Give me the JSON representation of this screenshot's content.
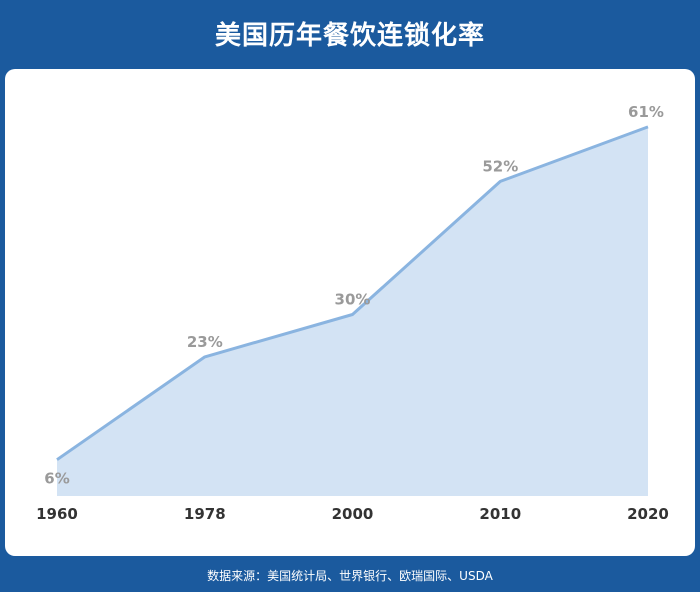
{
  "header": {
    "title": "美国历年餐饮连锁化率"
  },
  "footer": {
    "source": "数据来源：美国统计局、世界银行、欧瑞国际、USDA"
  },
  "chart_data": {
    "type": "area",
    "title": "美国历年餐饮连锁化率",
    "categories": [
      "1960",
      "1978",
      "2000",
      "2010",
      "2020"
    ],
    "values": [
      6,
      23,
      30,
      52,
      61
    ],
    "value_labels": [
      "6%",
      "23%",
      "30%",
      "52%",
      "61%"
    ],
    "unit": "%",
    "ylim": [
      0,
      66
    ],
    "grid": false,
    "legend": "none",
    "colors": {
      "line": "#8ab4e0",
      "fill": "#d3e3f4",
      "label": "#9a9a9a",
      "tick": "#333333"
    }
  }
}
